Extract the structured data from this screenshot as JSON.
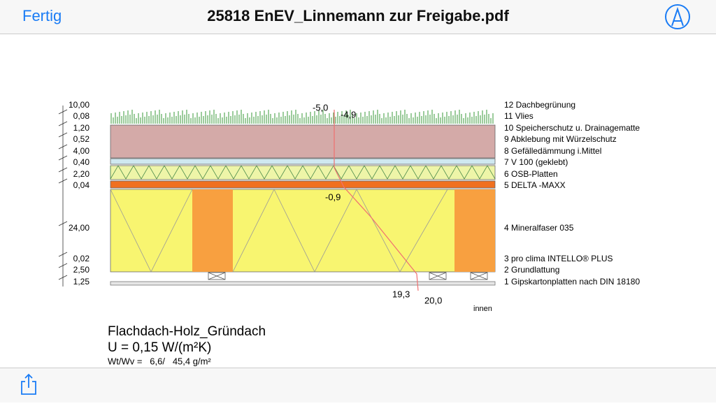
{
  "header": {
    "done": "Fertig",
    "title": "25818 EnEV_Linnemann zur Freigabe.pdf"
  },
  "diagram": {
    "layers": [
      {
        "thickness": "10,00",
        "label": "12 Dachbegrünung"
      },
      {
        "thickness": "0,08",
        "label": "11 Vlies"
      },
      {
        "thickness": "1,20",
        "label": "10 Speicherschutz u. Drainagematte"
      },
      {
        "thickness": "0,52",
        "label": "9 Abklebung mit Würzelschutz"
      },
      {
        "thickness": "4,00",
        "label": "8 Gefälledämmung i.Mittel"
      },
      {
        "thickness": "0,40",
        "label": "7 V 100 (geklebt)"
      },
      {
        "thickness": "2,20",
        "label": "6 OSB-Platten"
      },
      {
        "thickness": "0,04",
        "label": "5 DELTA -MAXX"
      },
      {
        "thickness": "24,00",
        "label": "4 Mineralfaser 035"
      },
      {
        "thickness": "0,02",
        "label": "3 pro clima INTELLO® PLUS"
      },
      {
        "thickness": "2,50",
        "label": "2 Grundlattung"
      },
      {
        "thickness": "1,25",
        "label": "1 Gipskartonplatten nach DIN 18180"
      }
    ],
    "temperatures": [
      "-5,0",
      "-4,9",
      "-0,9",
      "19,3",
      "20,0"
    ],
    "inside": "innen",
    "caption": {
      "name": "Flachdach-Holz_Gründach",
      "u_value": "U = 0,15 W/(m²K)",
      "ratio": "Wt/Wv =   6,6/   45,4 g/m²"
    }
  }
}
